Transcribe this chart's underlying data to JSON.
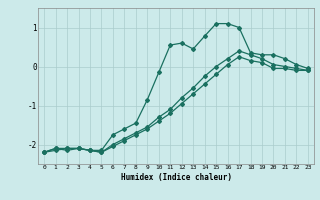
{
  "xlabel": "Humidex (Indice chaleur)",
  "bg_color": "#cceaea",
  "line_color": "#1a7060",
  "grid_color": "#aacccc",
  "xlim": [
    -0.5,
    23.5
  ],
  "ylim": [
    -2.5,
    1.5
  ],
  "yticks": [
    -2,
    -1,
    0,
    1
  ],
  "xticks": [
    0,
    1,
    2,
    3,
    4,
    5,
    6,
    7,
    8,
    9,
    10,
    11,
    12,
    13,
    14,
    15,
    16,
    17,
    18,
    19,
    20,
    21,
    22,
    23
  ],
  "curve1_x": [
    0,
    1,
    2,
    3,
    4,
    5,
    6,
    7,
    8,
    9,
    10,
    11,
    12,
    13,
    14,
    15,
    16,
    17,
    18,
    19,
    20,
    21,
    22,
    23
  ],
  "curve1_y": [
    -2.2,
    -2.1,
    -2.15,
    -2.1,
    -2.15,
    -2.15,
    -1.75,
    -1.6,
    -1.45,
    -0.85,
    -0.15,
    0.55,
    0.6,
    0.45,
    0.78,
    1.1,
    1.1,
    1.0,
    0.35,
    0.3,
    0.3,
    0.2,
    0.05,
    -0.05
  ],
  "curve2_x": [
    0,
    1,
    2,
    3,
    4,
    5,
    6,
    7,
    8,
    9,
    10,
    11,
    12,
    13,
    14,
    15,
    16,
    17,
    18,
    19,
    20,
    21,
    22,
    23
  ],
  "curve2_y": [
    -2.2,
    -2.15,
    -2.1,
    -2.1,
    -2.15,
    -2.2,
    -2.05,
    -1.9,
    -1.75,
    -1.6,
    -1.4,
    -1.2,
    -0.95,
    -0.7,
    -0.45,
    -0.2,
    0.05,
    0.25,
    0.15,
    0.1,
    -0.05,
    -0.05,
    -0.1,
    -0.1
  ],
  "curve3_x": [
    0,
    1,
    2,
    3,
    4,
    5,
    6,
    7,
    8,
    9,
    10,
    11,
    12,
    13,
    14,
    15,
    16,
    17,
    18,
    19,
    20,
    21,
    22,
    23
  ],
  "curve3_y": [
    -2.2,
    -2.1,
    -2.1,
    -2.1,
    -2.15,
    -2.2,
    -2.0,
    -1.85,
    -1.7,
    -1.55,
    -1.3,
    -1.1,
    -0.8,
    -0.55,
    -0.25,
    0.0,
    0.2,
    0.4,
    0.3,
    0.2,
    0.05,
    0.0,
    -0.05,
    -0.1
  ]
}
